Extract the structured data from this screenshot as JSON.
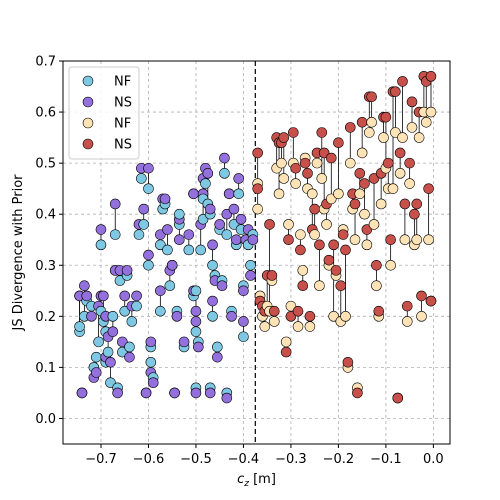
{
  "chart_data": {
    "type": "scatter",
    "xlabel": "c_z [m]",
    "xlabel_main": "c",
    "xlabel_sub": "z",
    "xlabel_unit": " [m]",
    "ylabel": "JS Divergence with Prior",
    "xlim": [
      -0.78,
      0.035
    ],
    "ylim": [
      -0.05,
      0.7
    ],
    "xticks": [
      -0.7,
      -0.6,
      -0.5,
      -0.4,
      -0.3,
      -0.2,
      -0.1,
      0.0
    ],
    "xtick_labels": [
      "−0.7",
      "−0.6",
      "−0.5",
      "−0.4",
      "−0.3",
      "−0.2",
      "−0.1",
      "0.0"
    ],
    "yticks": [
      0.0,
      0.1,
      0.2,
      0.3,
      0.4,
      0.5,
      0.6,
      0.7
    ],
    "ytick_labels": [
      "0.0",
      "0.1",
      "0.2",
      "0.3",
      "0.4",
      "0.5",
      "0.6",
      "0.7"
    ],
    "grid": true,
    "legend_position": "top-left",
    "vline": {
      "x": -0.375,
      "style": "dashed",
      "color": "#000000"
    },
    "series": [
      {
        "name": "NF",
        "color": "#7ec8e3",
        "group": "left",
        "marker": "circle"
      },
      {
        "name": "NS",
        "color": "#9370db",
        "group": "left",
        "marker": "circle"
      },
      {
        "name": "NF",
        "color": "#fde3b5",
        "group": "right",
        "marker": "circle"
      },
      {
        "name": "NS",
        "color": "#c8504a",
        "group": "right",
        "marker": "circle"
      }
    ],
    "pairs_left": [
      [
        -0.745,
        0.17,
        0.24
      ],
      [
        -0.745,
        0.18,
        0.24
      ],
      [
        -0.74,
        0.05,
        0.05
      ],
      [
        -0.735,
        0.2,
        0.26
      ],
      [
        -0.73,
        0.23,
        0.24
      ],
      [
        -0.72,
        0.22,
        0.2
      ],
      [
        -0.715,
        0.1,
        0.08
      ],
      [
        -0.71,
        0.12,
        0.09
      ],
      [
        -0.705,
        0.15,
        0.22
      ],
      [
        -0.7,
        0.21,
        0.24
      ],
      [
        -0.7,
        0.34,
        0.37
      ],
      [
        -0.695,
        0.19,
        0.24
      ],
      [
        -0.69,
        0.11,
        0.12
      ],
      [
        -0.69,
        0.17,
        0.2
      ],
      [
        -0.685,
        0.13,
        0.16
      ],
      [
        -0.68,
        0.07,
        0.11
      ],
      [
        -0.675,
        0.2,
        0.17
      ],
      [
        -0.67,
        0.29,
        0.29
      ],
      [
        -0.67,
        0.36,
        0.42
      ],
      [
        -0.665,
        0.06,
        0.05
      ],
      [
        -0.66,
        0.27,
        0.29
      ],
      [
        -0.655,
        0.13,
        0.15
      ],
      [
        -0.65,
        0.21,
        0.24
      ],
      [
        -0.645,
        0.28,
        0.29
      ],
      [
        -0.64,
        0.14,
        0.12
      ],
      [
        -0.635,
        0.19,
        0.22
      ],
      [
        -0.625,
        0.22,
        0.24
      ],
      [
        -0.62,
        0.36,
        0.38
      ],
      [
        -0.615,
        0.47,
        0.49
      ],
      [
        -0.61,
        0.38,
        0.41
      ],
      [
        -0.605,
        0.05,
        0.05
      ],
      [
        -0.6,
        0.3,
        0.32
      ],
      [
        -0.6,
        0.45,
        0.49
      ],
      [
        -0.595,
        0.14,
        0.15
      ],
      [
        -0.595,
        0.11,
        0.09
      ],
      [
        -0.59,
        0.08,
        0.07
      ],
      [
        -0.575,
        0.21,
        0.25
      ],
      [
        -0.575,
        0.34,
        0.36
      ],
      [
        -0.57,
        0.41,
        0.43
      ],
      [
        -0.565,
        0.42,
        0.43
      ],
      [
        -0.56,
        0.33,
        0.37
      ],
      [
        -0.555,
        0.26,
        0.29
      ],
      [
        -0.55,
        0.3,
        0.3
      ],
      [
        -0.545,
        0.05,
        0.05
      ],
      [
        -0.54,
        0.21,
        0.2
      ],
      [
        -0.535,
        0.38,
        0.39
      ],
      [
        -0.535,
        0.4,
        0.35
      ],
      [
        -0.525,
        0.14,
        0.15
      ],
      [
        -0.515,
        0.33,
        0.36
      ],
      [
        -0.505,
        0.24,
        0.25
      ],
      [
        -0.505,
        0.44,
        0.44
      ],
      [
        -0.5,
        0.06,
        0.05
      ],
      [
        -0.5,
        0.17,
        0.19
      ],
      [
        -0.5,
        0.25,
        0.21
      ],
      [
        -0.495,
        0.15,
        0.14
      ],
      [
        -0.49,
        0.33,
        0.38
      ],
      [
        -0.485,
        0.39,
        0.44
      ],
      [
        -0.485,
        0.43,
        0.47
      ],
      [
        -0.48,
        0.46,
        0.49
      ],
      [
        -0.475,
        0.42,
        0.48
      ],
      [
        -0.47,
        0.4,
        0.41
      ],
      [
        -0.47,
        0.06,
        0.05
      ],
      [
        -0.465,
        0.3,
        0.34
      ],
      [
        -0.465,
        0.2,
        0.23
      ],
      [
        -0.46,
        0.28,
        0.27
      ],
      [
        -0.455,
        0.14,
        0.12
      ],
      [
        -0.45,
        0.37,
        0.38
      ],
      [
        -0.445,
        0.27,
        0.26
      ],
      [
        -0.44,
        0.48,
        0.51
      ],
      [
        -0.435,
        0.05,
        0.04
      ],
      [
        -0.435,
        0.36,
        0.4
      ],
      [
        -0.43,
        0.44,
        0.44
      ],
      [
        -0.425,
        0.21,
        0.2
      ],
      [
        -0.42,
        0.38,
        0.41
      ],
      [
        -0.415,
        0.34,
        0.35
      ],
      [
        -0.41,
        0.44,
        0.47
      ],
      [
        -0.405,
        0.37,
        0.39
      ],
      [
        -0.4,
        0.26,
        0.25
      ],
      [
        -0.4,
        0.16,
        0.19
      ],
      [
        -0.395,
        0.35,
        0.35
      ],
      [
        -0.39,
        0.34,
        0.37
      ],
      [
        -0.385,
        0.3,
        0.28
      ],
      [
        -0.38,
        0.36,
        0.35
      ]
    ],
    "pairs_right": [
      [
        -0.37,
        0.41,
        0.52
      ],
      [
        -0.37,
        0.46,
        0.45
      ],
      [
        -0.365,
        0.24,
        0.23
      ],
      [
        -0.36,
        0.2,
        0.22
      ],
      [
        -0.355,
        0.18,
        0.21
      ],
      [
        -0.35,
        0.22,
        0.28
      ],
      [
        -0.345,
        0.21,
        0.38
      ],
      [
        -0.34,
        0.27,
        0.28
      ],
      [
        -0.335,
        0.19,
        0.21
      ],
      [
        -0.33,
        0.49,
        0.55
      ],
      [
        -0.325,
        0.44,
        0.54
      ],
      [
        -0.32,
        0.5,
        0.54
      ],
      [
        -0.315,
        0.47,
        0.55
      ],
      [
        -0.31,
        0.15,
        0.13
      ],
      [
        -0.305,
        0.38,
        0.35
      ],
      [
        -0.3,
        0.22,
        0.2
      ],
      [
        -0.295,
        0.5,
        0.56
      ],
      [
        -0.29,
        0.46,
        0.49
      ],
      [
        -0.285,
        0.18,
        0.21
      ],
      [
        -0.28,
        0.36,
        0.33
      ],
      [
        -0.275,
        0.29,
        0.26
      ],
      [
        -0.27,
        0.51,
        0.5
      ],
      [
        -0.265,
        0.45,
        0.48
      ],
      [
        -0.26,
        0.18,
        0.2
      ],
      [
        -0.255,
        0.44,
        0.37
      ],
      [
        -0.25,
        0.36,
        0.41
      ],
      [
        -0.245,
        0.5,
        0.52
      ],
      [
        -0.24,
        0.26,
        0.34
      ],
      [
        -0.235,
        0.47,
        0.56
      ],
      [
        -0.23,
        0.41,
        0.52
      ],
      [
        -0.225,
        0.38,
        0.42
      ],
      [
        -0.22,
        0.3,
        0.31
      ],
      [
        -0.215,
        0.43,
        0.51
      ],
      [
        -0.21,
        0.2,
        0.34
      ],
      [
        -0.205,
        0.28,
        0.29
      ],
      [
        -0.2,
        0.44,
        0.54
      ],
      [
        -0.195,
        0.19,
        0.26
      ],
      [
        -0.19,
        0.37,
        0.36
      ],
      [
        -0.185,
        0.2,
        0.33
      ],
      [
        -0.18,
        0.1,
        0.11
      ],
      [
        -0.175,
        0.5,
        0.57
      ],
      [
        -0.17,
        0.41,
        0.44
      ],
      [
        -0.165,
        0.35,
        0.42
      ],
      [
        -0.16,
        0.06,
        0.05
      ],
      [
        -0.155,
        0.44,
        0.48
      ],
      [
        -0.15,
        0.52,
        0.58
      ],
      [
        -0.145,
        0.4,
        0.46
      ],
      [
        -0.14,
        0.34,
        0.37
      ],
      [
        -0.135,
        0.56,
        0.63
      ],
      [
        -0.13,
        0.58,
        0.63
      ],
      [
        -0.125,
        0.38,
        0.47
      ],
      [
        -0.12,
        0.26,
        0.3
      ],
      [
        -0.115,
        0.2,
        0.21
      ],
      [
        -0.11,
        0.42,
        0.48
      ],
      [
        -0.105,
        0.55,
        0.59
      ],
      [
        -0.1,
        0.49,
        0.59
      ],
      [
        -0.095,
        0.45,
        0.5
      ],
      [
        -0.09,
        0.3,
        0.35
      ],
      [
        -0.085,
        0.45,
        0.64
      ],
      [
        -0.08,
        0.56,
        0.64
      ],
      [
        -0.075,
        0.04,
        0.04
      ],
      [
        -0.07,
        0.48,
        0.52
      ],
      [
        -0.065,
        0.55,
        0.66
      ],
      [
        -0.06,
        0.35,
        0.42
      ],
      [
        -0.055,
        0.19,
        0.22
      ],
      [
        -0.05,
        0.46,
        0.5
      ],
      [
        -0.045,
        0.57,
        0.62
      ],
      [
        -0.04,
        0.34,
        0.4
      ],
      [
        -0.035,
        0.35,
        0.42
      ],
      [
        -0.03,
        0.55,
        0.6
      ],
      [
        -0.025,
        0.2,
        0.24
      ],
      [
        -0.02,
        0.6,
        0.67
      ],
      [
        -0.015,
        0.58,
        0.66
      ],
      [
        -0.01,
        0.35,
        0.45
      ],
      [
        -0.005,
        0.23,
        0.23
      ],
      [
        -0.005,
        0.6,
        0.67
      ]
    ]
  }
}
